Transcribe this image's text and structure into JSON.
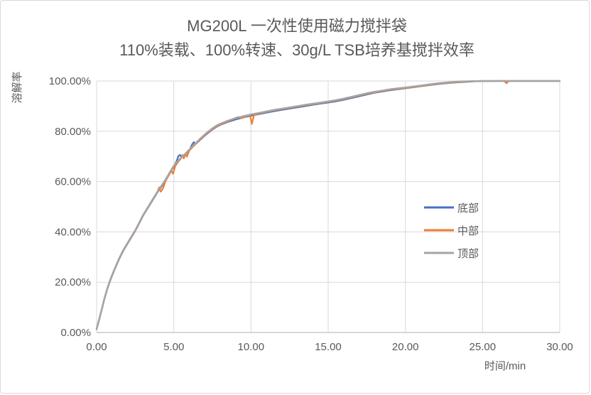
{
  "window": {
    "title_line1": "MG200L 一次性使用磁力搅拌袋",
    "title_line2": "110%装载、100%转速、30g/L TSB培养基搅拌效率"
  },
  "colors": {
    "series_bottom": "#4472C4",
    "series_middle": "#ED7D31",
    "series_top": "#A5A5A5",
    "gridline": "#D9D9D9",
    "axis_line": "#BFBFBF",
    "text": "#595959"
  },
  "chart_data": {
    "type": "line",
    "title": "MG200L 一次性使用磁力搅拌袋",
    "subtitle": "110%装载、100%转速、30g/L TSB培养基搅拌效率",
    "xlabel": "时间/min",
    "ylabel": "溶解率",
    "xlim": [
      0,
      30
    ],
    "ylim_percent": [
      0,
      100
    ],
    "grid": true,
    "legend_position": "inside-right-center",
    "x_tick_labels": [
      "0.00",
      "5.00",
      "10.00",
      "15.00",
      "20.00",
      "25.00",
      "30.00"
    ],
    "y_tick_labels_top_to_bottom": [
      "100.00%",
      "80.00%",
      "60.00%",
      "40.00%",
      "20.00%",
      "0.00%"
    ],
    "series": [
      {
        "name": "底部",
        "color": "#4472C4",
        "points": [
          [
            0,
            1.3
          ],
          [
            0.15,
            4.6
          ],
          [
            0.3,
            8.2
          ],
          [
            0.5,
            13.2
          ],
          [
            0.7,
            17.4
          ],
          [
            0.9,
            21
          ],
          [
            1.1,
            24
          ],
          [
            1.3,
            27
          ],
          [
            1.5,
            29.7
          ],
          [
            1.75,
            32.7
          ],
          [
            2,
            35.3
          ],
          [
            2.25,
            37.8
          ],
          [
            2.5,
            40.3
          ],
          [
            2.75,
            43.3
          ],
          [
            3,
            46.3
          ],
          [
            3.25,
            48.8
          ],
          [
            3.5,
            51.3
          ],
          [
            3.75,
            53.8
          ],
          [
            4,
            56.3
          ],
          [
            4.25,
            58.4
          ],
          [
            4.5,
            60.8
          ],
          [
            4.75,
            63.5
          ],
          [
            5,
            66
          ],
          [
            5.2,
            68.4
          ],
          [
            5.3,
            70.2
          ],
          [
            5.4,
            70.6
          ],
          [
            5.5,
            69.6
          ],
          [
            5.75,
            70.9
          ],
          [
            6,
            72.4
          ],
          [
            6.2,
            74.9
          ],
          [
            6.3,
            75.7
          ],
          [
            6.4,
            74.9
          ],
          [
            6.5,
            75.4
          ],
          [
            6.75,
            76.8
          ],
          [
            7,
            78.2
          ],
          [
            7.25,
            79.5
          ],
          [
            7.5,
            80.7
          ],
          [
            7.75,
            81.7
          ],
          [
            8,
            82.5
          ],
          [
            8.5,
            83.7
          ],
          [
            9,
            84.7
          ],
          [
            9.5,
            85.5
          ],
          [
            10,
            86.2
          ],
          [
            10.5,
            86.8
          ],
          [
            11,
            87.4
          ],
          [
            11.5,
            88
          ],
          [
            12,
            88.5
          ],
          [
            12.5,
            89
          ],
          [
            13,
            89.5
          ],
          [
            13.5,
            90
          ],
          [
            14,
            90.5
          ],
          [
            14.5,
            91
          ],
          [
            15,
            91.4
          ],
          [
            15.5,
            91.9
          ],
          [
            16,
            92.5
          ],
          [
            16.5,
            93.2
          ],
          [
            17,
            93.9
          ],
          [
            17.5,
            94.6
          ],
          [
            18,
            95.3
          ],
          [
            18.5,
            95.8
          ],
          [
            19,
            96.3
          ],
          [
            19.5,
            96.7
          ],
          [
            20,
            97.1
          ],
          [
            20.5,
            97.5
          ],
          [
            21,
            97.9
          ],
          [
            21.5,
            98.3
          ],
          [
            22,
            98.7
          ],
          [
            22.5,
            99
          ],
          [
            23,
            99.3
          ],
          [
            23.5,
            99.5
          ],
          [
            24,
            99.7
          ],
          [
            24.5,
            99.85
          ],
          [
            25,
            99.95
          ],
          [
            26,
            100
          ],
          [
            27,
            100
          ],
          [
            28,
            100
          ],
          [
            29,
            100
          ],
          [
            30,
            100
          ]
        ]
      },
      {
        "name": "中部",
        "color": "#ED7D31",
        "points": [
          [
            0,
            1.4
          ],
          [
            0.15,
            4.8
          ],
          [
            0.3,
            8.3
          ],
          [
            0.5,
            13.3
          ],
          [
            0.7,
            17.5
          ],
          [
            0.9,
            21.1
          ],
          [
            1.1,
            24.1
          ],
          [
            1.3,
            27.1
          ],
          [
            1.5,
            29.8
          ],
          [
            1.75,
            32.8
          ],
          [
            2,
            35.4
          ],
          [
            2.25,
            37.9
          ],
          [
            2.5,
            40.4
          ],
          [
            2.75,
            43.4
          ],
          [
            3,
            46.4
          ],
          [
            3.25,
            48.9
          ],
          [
            3.5,
            51.4
          ],
          [
            3.75,
            53.9
          ],
          [
            3.95,
            56
          ],
          [
            4.05,
            57.7
          ],
          [
            4.15,
            56
          ],
          [
            4.3,
            57.3
          ],
          [
            4.45,
            60
          ],
          [
            4.6,
            61.7
          ],
          [
            4.75,
            63.3
          ],
          [
            4.85,
            64.3
          ],
          [
            4.95,
            63.1
          ],
          [
            5.1,
            66.2
          ],
          [
            5.3,
            68
          ],
          [
            5.45,
            69
          ],
          [
            5.55,
            70.6
          ],
          [
            5.65,
            69.2
          ],
          [
            5.75,
            71
          ],
          [
            5.85,
            69.9
          ],
          [
            6,
            72.3
          ],
          [
            6.25,
            73.9
          ],
          [
            6.5,
            75.5
          ],
          [
            6.75,
            77
          ],
          [
            7,
            78.4
          ],
          [
            7.25,
            79.7
          ],
          [
            7.5,
            80.9
          ],
          [
            7.75,
            81.9
          ],
          [
            8,
            82.7
          ],
          [
            8.5,
            83.9
          ],
          [
            9,
            85.3
          ],
          [
            9.2,
            85.7
          ],
          [
            9.4,
            85.2
          ],
          [
            9.6,
            85.8
          ],
          [
            9.8,
            86.2
          ],
          [
            9.95,
            86.4
          ],
          [
            10.05,
            82.9
          ],
          [
            10.2,
            86.5
          ],
          [
            10.5,
            87.1
          ],
          [
            11,
            87.7
          ],
          [
            11.5,
            88.3
          ],
          [
            12,
            88.8
          ],
          [
            12.5,
            89.3
          ],
          [
            13,
            89.8
          ],
          [
            13.5,
            90.3
          ],
          [
            14,
            90.8
          ],
          [
            14.5,
            91.2
          ],
          [
            15,
            91.7
          ],
          [
            15.5,
            92.2
          ],
          [
            16,
            92.8
          ],
          [
            16.5,
            93.5
          ],
          [
            17,
            94.2
          ],
          [
            17.5,
            94.9
          ],
          [
            18,
            95.5
          ],
          [
            18.5,
            96
          ],
          [
            19,
            96.5
          ],
          [
            19.5,
            96.9
          ],
          [
            20,
            97.2
          ],
          [
            20.5,
            97.6
          ],
          [
            21,
            98
          ],
          [
            21.5,
            98.4
          ],
          [
            22,
            98.8
          ],
          [
            22.5,
            99.1
          ],
          [
            23,
            99.4
          ],
          [
            23.5,
            99.6
          ],
          [
            24,
            99.8
          ],
          [
            25,
            100
          ],
          [
            26.4,
            100
          ],
          [
            26.55,
            99.1
          ],
          [
            26.7,
            100
          ],
          [
            28,
            100
          ],
          [
            29,
            100
          ],
          [
            30,
            100
          ]
        ]
      },
      {
        "name": "顶部",
        "color": "#A5A5A5",
        "points": [
          [
            0,
            1.5
          ],
          [
            0.15,
            5
          ],
          [
            0.3,
            8.5
          ],
          [
            0.5,
            13.5
          ],
          [
            0.7,
            17.7
          ],
          [
            0.9,
            21.3
          ],
          [
            1.1,
            24.3
          ],
          [
            1.3,
            27.3
          ],
          [
            1.5,
            30
          ],
          [
            1.75,
            33
          ],
          [
            2,
            35.6
          ],
          [
            2.25,
            38.1
          ],
          [
            2.5,
            40.6
          ],
          [
            2.75,
            43.6
          ],
          [
            3,
            46.6
          ],
          [
            3.25,
            49.1
          ],
          [
            3.5,
            51.6
          ],
          [
            3.75,
            54.1
          ],
          [
            4,
            56.6
          ],
          [
            4.25,
            58.8
          ],
          [
            4.5,
            61.1
          ],
          [
            4.75,
            63.8
          ],
          [
            5,
            66.3
          ],
          [
            5.25,
            68.1
          ],
          [
            5.5,
            69.7
          ],
          [
            5.75,
            71.1
          ],
          [
            6,
            72.7
          ],
          [
            6.25,
            74.3
          ],
          [
            6.5,
            75.8
          ],
          [
            6.75,
            77.3
          ],
          [
            7,
            78.7
          ],
          [
            7.25,
            80
          ],
          [
            7.5,
            81.2
          ],
          [
            7.75,
            82.2
          ],
          [
            8,
            83
          ],
          [
            8.25,
            83.6
          ],
          [
            8.5,
            84.2
          ],
          [
            9,
            85.2
          ],
          [
            9.5,
            86
          ],
          [
            10,
            86.7
          ],
          [
            10.5,
            87.3
          ],
          [
            11,
            87.9
          ],
          [
            11.5,
            88.5
          ],
          [
            12,
            89
          ],
          [
            12.5,
            89.5
          ],
          [
            13,
            90
          ],
          [
            13.5,
            90.5
          ],
          [
            14,
            91
          ],
          [
            14.5,
            91.4
          ],
          [
            15,
            91.9
          ],
          [
            15.5,
            92.4
          ],
          [
            16,
            93
          ],
          [
            16.5,
            93.7
          ],
          [
            17,
            94.4
          ],
          [
            17.5,
            95.1
          ],
          [
            18,
            95.7
          ],
          [
            18.5,
            96.2
          ],
          [
            19,
            96.7
          ],
          [
            19.5,
            97.1
          ],
          [
            20,
            97.4
          ],
          [
            20.5,
            97.8
          ],
          [
            21,
            98.2
          ],
          [
            21.5,
            98.6
          ],
          [
            22,
            99
          ],
          [
            22.5,
            99.3
          ],
          [
            23,
            99.6
          ],
          [
            23.5,
            99.8
          ],
          [
            24,
            99.9
          ],
          [
            25,
            100
          ],
          [
            26,
            100
          ],
          [
            27,
            100
          ],
          [
            28,
            100
          ],
          [
            29,
            100
          ],
          [
            30,
            100
          ]
        ]
      }
    ]
  }
}
